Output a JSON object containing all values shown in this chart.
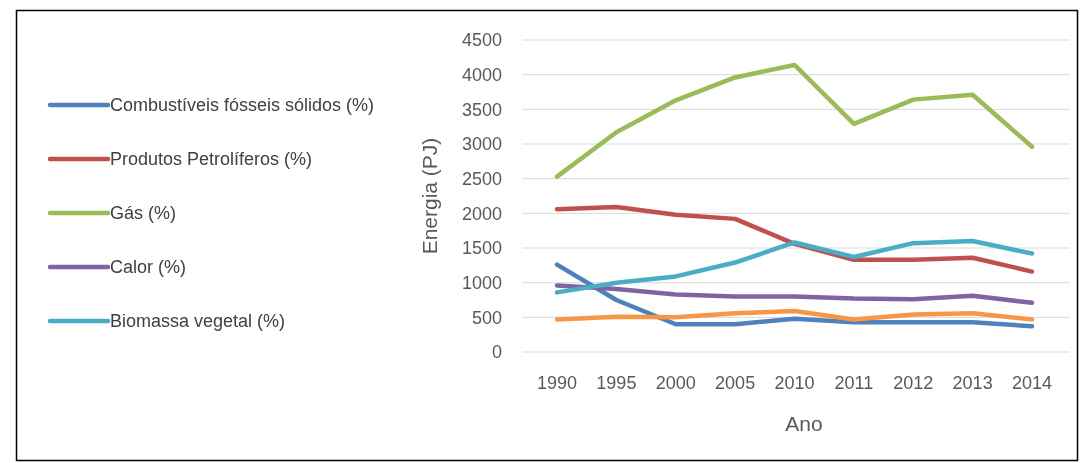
{
  "chart_data": {
    "type": "line",
    "xlabel": "Ano",
    "ylabel": "Energia (PJ)",
    "categories": [
      "1990",
      "1995",
      "2000",
      "2005",
      "2010",
      "2011",
      "2012",
      "2013",
      "2014"
    ],
    "series": [
      {
        "name": "Combustíveis fósseis sólidos (%)",
        "color": "#4f81bd",
        "values": [
          1260,
          750,
          400,
          400,
          480,
          430,
          430,
          430,
          370
        ]
      },
      {
        "name": "Produtos Petrolíferos (%)",
        "color": "#c0504d",
        "values": [
          2060,
          2090,
          1980,
          1920,
          1560,
          1330,
          1330,
          1360,
          1160
        ]
      },
      {
        "name": "Gás (%)",
        "color": "#9bbb59",
        "values": [
          2530,
          3170,
          3630,
          3960,
          4140,
          3290,
          3640,
          3710,
          2960
        ]
      },
      {
        "name": "Calor (%)",
        "color": "#8064a2",
        "values": [
          960,
          910,
          830,
          800,
          800,
          770,
          760,
          810,
          710
        ]
      },
      {
        "name": "Biomassa vegetal (%)",
        "color": "#4bacc6",
        "values": [
          860,
          1000,
          1090,
          1290,
          1580,
          1370,
          1570,
          1600,
          1420
        ]
      },
      {
        "color": "#f79646",
        "values": [
          470,
          510,
          500,
          560,
          590,
          470,
          540,
          560,
          470
        ]
      }
    ],
    "ylim": [
      0,
      4500
    ],
    "yticks": [
      0,
      500,
      1000,
      1500,
      2000,
      2500,
      3000,
      3500,
      4000,
      4500
    ],
    "grid": "y",
    "legend": "left",
    "marker": "none",
    "line_style": "solid"
  }
}
